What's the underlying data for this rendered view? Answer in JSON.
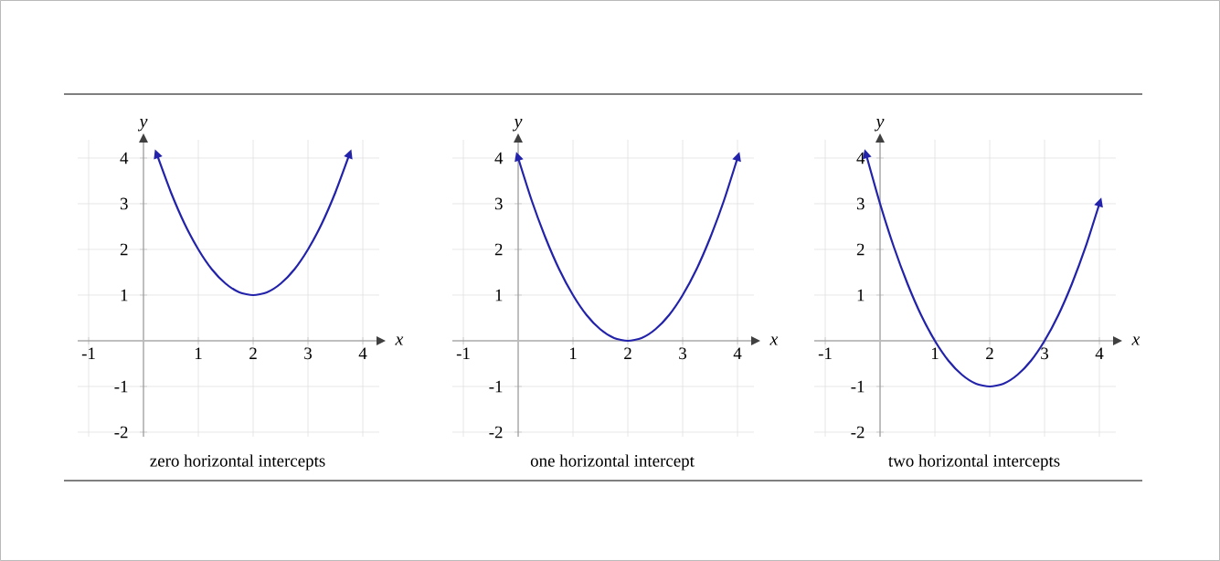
{
  "chart_data": [
    {
      "type": "line",
      "xlabel": "x",
      "ylabel": "y",
      "grid": true,
      "xlim": [
        -1.2,
        4.3
      ],
      "ylim": [
        -2.1,
        4.4
      ],
      "xticks": [
        -1,
        1,
        2,
        3,
        4
      ],
      "yticks": [
        -2,
        -1,
        1,
        2,
        3,
        4
      ],
      "annotations": [
        "zero horizontal intercepts"
      ],
      "series": [
        {
          "color": "#2222aa",
          "x": [
            0.25,
            0.5,
            0.75,
            1,
            1.25,
            1.5,
            1.75,
            2,
            2.25,
            2.5,
            2.75,
            3,
            3.25,
            3.5,
            3.75
          ],
          "values": [
            4.06,
            3.25,
            2.56,
            2,
            1.56,
            1.25,
            1.06,
            1,
            1.06,
            1.25,
            1.56,
            2,
            2.56,
            3.25,
            4.06
          ]
        }
      ]
    },
    {
      "type": "line",
      "xlabel": "x",
      "ylabel": "y",
      "grid": true,
      "xlim": [
        -1.2,
        4.3
      ],
      "ylim": [
        -2.1,
        4.4
      ],
      "xticks": [
        -1,
        1,
        2,
        3,
        4
      ],
      "yticks": [
        -2,
        -1,
        1,
        2,
        3,
        4
      ],
      "annotations": [
        "one horizontal intercept"
      ],
      "series": [
        {
          "color": "#2222aa",
          "x": [
            0,
            0.25,
            0.5,
            0.75,
            1,
            1.25,
            1.5,
            1.75,
            2,
            2.25,
            2.5,
            2.75,
            3,
            3.25,
            3.5,
            3.75,
            4
          ],
          "values": [
            4,
            3.06,
            2.25,
            1.56,
            1,
            0.56,
            0.25,
            0.06,
            0,
            0.06,
            0.25,
            0.56,
            1,
            1.56,
            2.25,
            3.06,
            4
          ]
        }
      ]
    },
    {
      "type": "line",
      "xlabel": "x",
      "ylabel": "y",
      "grid": true,
      "xlim": [
        -1.2,
        4.3
      ],
      "ylim": [
        -2.1,
        4.4
      ],
      "xticks": [
        -1,
        1,
        2,
        3,
        4
      ],
      "yticks": [
        -2,
        -1,
        1,
        2,
        3,
        4
      ],
      "annotations": [
        "two horizontal intercepts"
      ],
      "series": [
        {
          "color": "#2222aa",
          "x": [
            -0.25,
            0,
            0.25,
            0.5,
            0.75,
            1,
            1.25,
            1.5,
            1.75,
            2,
            2.25,
            2.5,
            2.75,
            3,
            3.25,
            3.5,
            3.75,
            4
          ],
          "values": [
            4.06,
            3,
            2.06,
            1.25,
            0.56,
            0,
            -0.44,
            -0.75,
            -0.94,
            -1,
            -0.94,
            -0.75,
            -0.44,
            0,
            0.56,
            1.25,
            2.06,
            3
          ]
        }
      ]
    }
  ]
}
